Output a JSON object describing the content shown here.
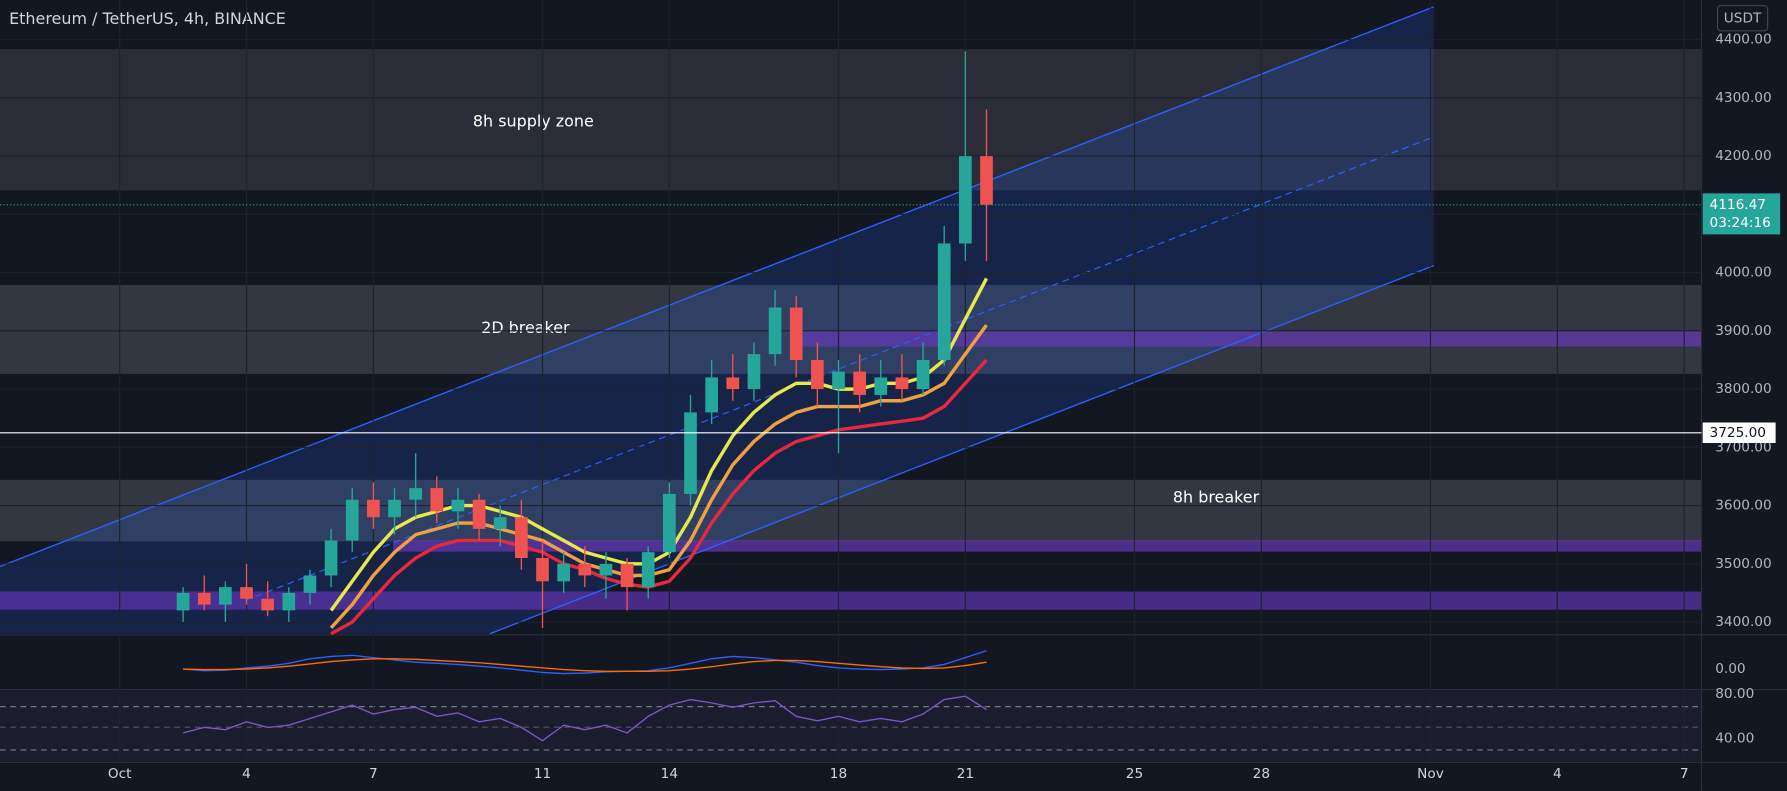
{
  "chart_data": {
    "type": "candlestick",
    "title": "Ethereum / TetherUS, 4h, BINANCE",
    "currency": "USDT",
    "x": [
      2.5,
      3,
      3.5,
      4,
      4.5,
      5,
      5.5,
      6,
      6.5,
      7,
      7.5,
      8,
      8.5,
      9,
      9.5,
      10,
      10.5,
      11,
      11.5,
      12,
      12.5,
      13,
      13.5,
      14,
      14.5,
      15,
      15.5,
      16,
      16.5,
      17,
      17.5,
      18,
      18.5,
      19,
      19.5,
      20,
      20.5,
      21,
      21.5
    ],
    "open": [
      3420,
      3450,
      3430,
      3460,
      3440,
      3420,
      3450,
      3480,
      3540,
      3610,
      3580,
      3610,
      3630,
      3590,
      3610,
      3560,
      3580,
      3510,
      3470,
      3500,
      3480,
      3500,
      3460,
      3520,
      3620,
      3760,
      3820,
      3800,
      3860,
      3940,
      3850,
      3800,
      3830,
      3790,
      3820,
      3800,
      3850,
      4050,
      4200
    ],
    "high": [
      3460,
      3480,
      3470,
      3500,
      3470,
      3460,
      3490,
      3560,
      3630,
      3640,
      3630,
      3690,
      3650,
      3630,
      3620,
      3600,
      3610,
      3540,
      3520,
      3530,
      3520,
      3510,
      3530,
      3640,
      3790,
      3850,
      3860,
      3880,
      3970,
      3960,
      3880,
      3850,
      3860,
      3850,
      3860,
      3880,
      4080,
      4380,
      4280
    ],
    "low": [
      3400,
      3420,
      3400,
      3430,
      3410,
      3400,
      3430,
      3460,
      3520,
      3560,
      3550,
      3580,
      3570,
      3560,
      3540,
      3530,
      3490,
      3390,
      3450,
      3460,
      3440,
      3420,
      3440,
      3510,
      3600,
      3740,
      3780,
      3780,
      3840,
      3820,
      3770,
      3690,
      3760,
      3770,
      3780,
      3790,
      3840,
      4020,
      4020
    ],
    "close": [
      3450,
      3430,
      3460,
      3440,
      3420,
      3450,
      3480,
      3540,
      3610,
      3580,
      3610,
      3630,
      3590,
      3610,
      3560,
      3580,
      3510,
      3470,
      3500,
      3480,
      3500,
      3460,
      3520,
      3620,
      3760,
      3820,
      3800,
      3860,
      3940,
      3850,
      3800,
      3830,
      3790,
      3820,
      3800,
      3850,
      4050,
      4200,
      4116.47
    ],
    "up_color": "#26a69a",
    "down_color": "#ef5350",
    "overlays": [
      {
        "color": "#e8e84a",
        "values": [
          null,
          null,
          null,
          null,
          null,
          null,
          null,
          3420,
          3470,
          3520,
          3560,
          3580,
          3590,
          3600,
          3600,
          3590,
          3580,
          3560,
          3540,
          3520,
          3510,
          3500,
          3500,
          3520,
          3580,
          3660,
          3720,
          3760,
          3790,
          3810,
          3810,
          3800,
          3800,
          3810,
          3810,
          3820,
          3850,
          3920,
          3990
        ]
      },
      {
        "color": "#f0a040",
        "values": [
          null,
          null,
          null,
          null,
          null,
          null,
          null,
          3390,
          3430,
          3480,
          3520,
          3550,
          3560,
          3570,
          3570,
          3560,
          3550,
          3540,
          3520,
          3500,
          3490,
          3480,
          3480,
          3490,
          3540,
          3610,
          3670,
          3710,
          3740,
          3760,
          3770,
          3770,
          3770,
          3780,
          3780,
          3790,
          3810,
          3860,
          3910
        ]
      },
      {
        "color": "#e8283c",
        "values": [
          null,
          null,
          null,
          null,
          null,
          null,
          null,
          3380,
          3400,
          3440,
          3480,
          3510,
          3530,
          3540,
          3540,
          3540,
          3530,
          3520,
          3500,
          3490,
          3475,
          3465,
          3460,
          3470,
          3510,
          3570,
          3620,
          3660,
          3690,
          3710,
          3720,
          3730,
          3735,
          3740,
          3745,
          3750,
          3770,
          3810,
          3850
        ]
      }
    ],
    "xlim": [
      -1.83,
      38.41
    ],
    "xticks": [
      {
        "value": 1,
        "label": "Oct"
      },
      4,
      7,
      11,
      14,
      18,
      21,
      25,
      28,
      {
        "value": 32,
        "label": "Nov"
      },
      {
        "value": 35,
        "label": "4"
      },
      {
        "value": 38,
        "label": "7"
      }
    ],
    "ylim": [
      3380,
      4468
    ],
    "yticks": [
      {
        "value": 3400,
        "label": "3400.00"
      },
      {
        "value": 3500,
        "label": "3500.00"
      },
      {
        "value": 3600,
        "label": "3600.00"
      },
      {
        "value": 3700,
        "label": "3700.00"
      },
      {
        "value": 3800,
        "label": "3800.00"
      },
      {
        "value": 3900,
        "label": "3900.00"
      },
      {
        "value": 4000,
        "label": "4000.00"
      },
      {
        "value": 4100,
        "label": "4100.00"
      },
      {
        "value": 4200,
        "label": "4200.00"
      },
      {
        "value": 4300,
        "label": "4300.00"
      },
      {
        "value": 4400,
        "label": "4400.00"
      }
    ],
    "price_label": {
      "value": 4116.47,
      "label": "4116.47"
    },
    "countdown": "03:24:16",
    "level": {
      "value": 3725,
      "label": "3725.00"
    },
    "annotations": [
      "8h supply zone",
      "2D breaker",
      "8h breaker"
    ],
    "panes": [
      {
        "ylim": [
          -34,
          60
        ],
        "yticks": [
          {
            "value": 0,
            "label": "0.00"
          }
        ],
        "series": [
          {
            "color": "#2962ff",
            "values": [
              0,
              -3,
              -2,
              2,
              5,
              10,
              18,
              22,
              24,
              20,
              16,
              12,
              10,
              8,
              5,
              2,
              -2,
              -6,
              -8,
              -7,
              -5,
              -4,
              -3,
              2,
              10,
              18,
              22,
              20,
              16,
              12,
              6,
              2,
              0,
              -1,
              0,
              2,
              8,
              20,
              32
            ]
          },
          {
            "color": "#ff6d00",
            "values": [
              0,
              -1,
              -1,
              0,
              2,
              5,
              9,
              13,
              16,
              18,
              18,
              17,
              15,
              13,
              11,
              8,
              5,
              2,
              -1,
              -3,
              -4,
              -4,
              -4,
              -3,
              0,
              4,
              9,
              13,
              15,
              15,
              13,
              10,
              7,
              4,
              2,
              1,
              2,
              6,
              12
            ]
          }
        ]
      },
      {
        "ylim": [
          19.5,
          83
        ],
        "yticks": [
          {
            "value": 80,
            "label": "80.00"
          },
          {
            "value": 40,
            "label": "40.00"
          }
        ],
        "series": [
          {
            "color": "#7e57c2",
            "values": [
              45,
              50,
              48,
              55,
              50,
              52,
              58,
              64,
              70,
              62,
              66,
              68,
              60,
              63,
              55,
              58,
              50,
              38,
              52,
              48,
              52,
              45,
              60,
              70,
              75,
              72,
              68,
              72,
              74,
              60,
              56,
              60,
              55,
              58,
              55,
              62,
              75,
              78,
              66
            ]
          }
        ]
      }
    ]
  }
}
